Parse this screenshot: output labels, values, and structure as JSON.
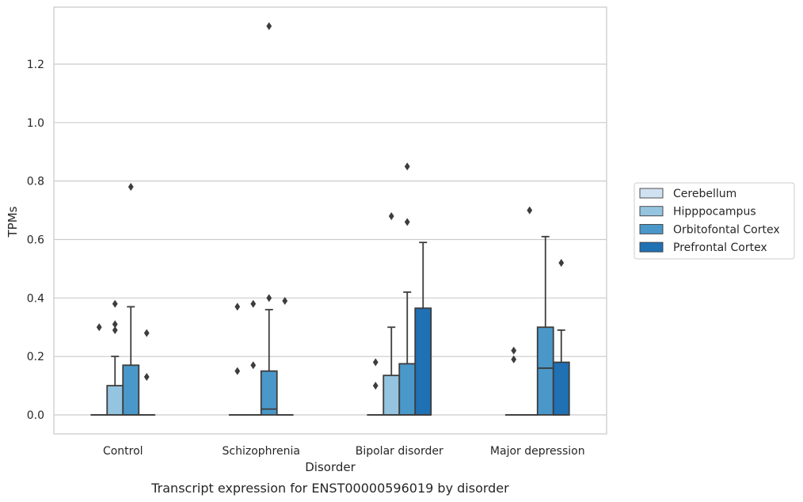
{
  "chart_data": {
    "type": "box",
    "caption": "Transcript expression for ENST00000596019 by disorder",
    "xlabel": "Disorder",
    "ylabel": "TPMs",
    "ylim": [
      -0.065,
      1.395
    ],
    "yticks": [
      0.0,
      0.2,
      0.4,
      0.6,
      0.8,
      1.0,
      1.2
    ],
    "ytick_labels": [
      "0.0",
      "0.2",
      "0.4",
      "0.6",
      "0.8",
      "1.0",
      "1.2"
    ],
    "categories": [
      "Control",
      "Schizophrenia",
      "Bipolar disorder",
      "Major depression"
    ],
    "grid": "horizontal",
    "legend_position": "right",
    "series": [
      {
        "name": "Cerebellum",
        "color": "#d0e1f2",
        "boxes": [
          {
            "q1": 0,
            "median": 0,
            "q3": 0,
            "whisker_low": 0,
            "whisker_high": 0,
            "outliers": [
              0.3
            ]
          },
          {
            "q1": 0,
            "median": 0,
            "q3": 0,
            "whisker_low": 0,
            "whisker_high": 0,
            "outliers": [
              0.15,
              0.37
            ]
          },
          {
            "q1": 0,
            "median": 0,
            "q3": 0,
            "whisker_low": 0,
            "whisker_high": 0,
            "outliers": [
              0.1,
              0.18
            ]
          },
          {
            "q1": 0,
            "median": 0,
            "q3": 0,
            "whisker_low": 0,
            "whisker_high": 0,
            "outliers": [
              0.19,
              0.22
            ]
          }
        ]
      },
      {
        "name": "Hipppocampus",
        "color": "#94c4df",
        "boxes": [
          {
            "q1": 0,
            "median": 0,
            "q3": 0.1,
            "whisker_low": 0,
            "whisker_high": 0.2,
            "outliers": [
              0.29,
              0.31,
              0.38
            ]
          },
          {
            "q1": 0,
            "median": 0,
            "q3": 0,
            "whisker_low": 0,
            "whisker_high": 0,
            "outliers": [
              0.17,
              0.38
            ]
          },
          {
            "q1": 0,
            "median": 0,
            "q3": 0.135,
            "whisker_low": 0,
            "whisker_high": 0.3,
            "outliers": [
              0.68
            ]
          },
          {
            "q1": 0,
            "median": 0,
            "q3": 0,
            "whisker_low": 0,
            "whisker_high": 0,
            "outliers": [
              0.7
            ]
          }
        ]
      },
      {
        "name": "Orbitofontal Cortex",
        "color": "#4a98c9",
        "boxes": [
          {
            "q1": 0,
            "median": 0,
            "q3": 0.17,
            "whisker_low": 0,
            "whisker_high": 0.37,
            "outliers": [
              0.78
            ]
          },
          {
            "q1": 0,
            "median": 0.02,
            "q3": 0.15,
            "whisker_low": 0,
            "whisker_high": 0.36,
            "outliers": [
              0.4,
              1.33
            ]
          },
          {
            "q1": 0,
            "median": 0,
            "q3": 0.175,
            "whisker_low": 0,
            "whisker_high": 0.42,
            "outliers": [
              0.66,
              0.85
            ]
          },
          {
            "q1": 0,
            "median": 0.16,
            "q3": 0.3,
            "whisker_low": 0,
            "whisker_high": 0.61,
            "outliers": []
          }
        ]
      },
      {
        "name": "Prefrontal Cortex",
        "color": "#2070b4",
        "boxes": [
          {
            "q1": 0,
            "median": 0,
            "q3": 0,
            "whisker_low": 0,
            "whisker_high": 0,
            "outliers": [
              0.13,
              0.28
            ]
          },
          {
            "q1": 0,
            "median": 0,
            "q3": 0,
            "whisker_low": 0,
            "whisker_high": 0,
            "outliers": [
              0.39
            ]
          },
          {
            "q1": 0,
            "median": 0,
            "q3": 0.365,
            "whisker_low": 0,
            "whisker_high": 0.59,
            "outliers": []
          },
          {
            "q1": 0,
            "median": 0,
            "q3": 0.18,
            "whisker_low": 0,
            "whisker_high": 0.29,
            "outliers": [
              0.52
            ]
          }
        ]
      }
    ]
  }
}
